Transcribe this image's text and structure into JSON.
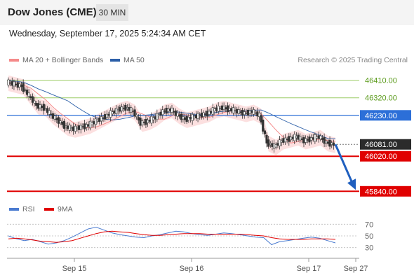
{
  "header": {
    "title": "Dow Jones (CME)",
    "timeframe": "30 MIN"
  },
  "date_line": "Wednesday, September 17, 2025 5:24:34 AM CET",
  "credit": "Research © 2025 Trading Central",
  "legend_main": [
    {
      "label": "MA 20 + Bollinger Bands",
      "color": "#f58a8a"
    },
    {
      "label": "MA 50",
      "color": "#2c5fa8"
    }
  ],
  "legend_rsi": [
    {
      "label": "RSI",
      "color": "#4a7bd0"
    },
    {
      "label": "9MA",
      "color": "#e00000"
    }
  ],
  "chart_data": {
    "type": "candlestick",
    "y_range": [
      45780,
      46470
    ],
    "x_ticks": [
      "Sep 15",
      "Sep 16",
      "Sep 17",
      "Sep 27"
    ],
    "levels": [
      {
        "value": 46410,
        "label": "46410.00",
        "kind": "resistance"
      },
      {
        "value": 46320,
        "label": "46320.00",
        "kind": "resistance"
      },
      {
        "value": 46230,
        "label": "46230.00",
        "kind": "pivot"
      },
      {
        "value": 46081,
        "label": "46081.00",
        "kind": "last-price"
      },
      {
        "value": 46020,
        "label": "46020.00",
        "kind": "support"
      },
      {
        "value": 45840,
        "label": "45840.00",
        "kind": "support"
      }
    ],
    "close_series": [
      46400,
      46390,
      46380,
      46330,
      46280,
      46270,
      46230,
      46200,
      46170,
      46160,
      46170,
      46180,
      46200,
      46220,
      46240,
      46260,
      46270,
      46250,
      46190,
      46200,
      46220,
      46250,
      46260,
      46230,
      46210,
      46220,
      46230,
      46240,
      46260,
      46270,
      46260,
      46250,
      46240,
      46250,
      46230,
      46090,
      46070,
      46100,
      46110,
      46120,
      46100,
      46110,
      46120,
      46090,
      46081
    ],
    "rsi": {
      "y_ticks": [
        70,
        50,
        30
      ],
      "rsi_series": [
        50,
        45,
        42,
        44,
        40,
        36,
        38,
        42,
        48,
        55,
        62,
        65,
        60,
        55,
        52,
        50,
        48,
        47,
        50,
        52,
        55,
        58,
        57,
        54,
        52,
        51,
        53,
        55,
        54,
        52,
        50,
        48,
        47,
        35,
        40,
        42,
        44,
        46,
        48,
        46,
        42,
        38
      ],
      "ma_series": [
        45,
        46,
        45,
        43,
        41,
        40,
        39,
        40,
        42,
        46,
        50,
        54,
        57,
        58,
        57,
        56,
        54,
        52,
        51,
        51,
        52,
        53,
        54,
        54,
        54,
        53,
        53,
        53,
        53,
        53,
        52,
        51,
        50,
        47,
        45,
        44,
        44,
        44,
        45,
        45,
        45,
        44
      ]
    }
  }
}
